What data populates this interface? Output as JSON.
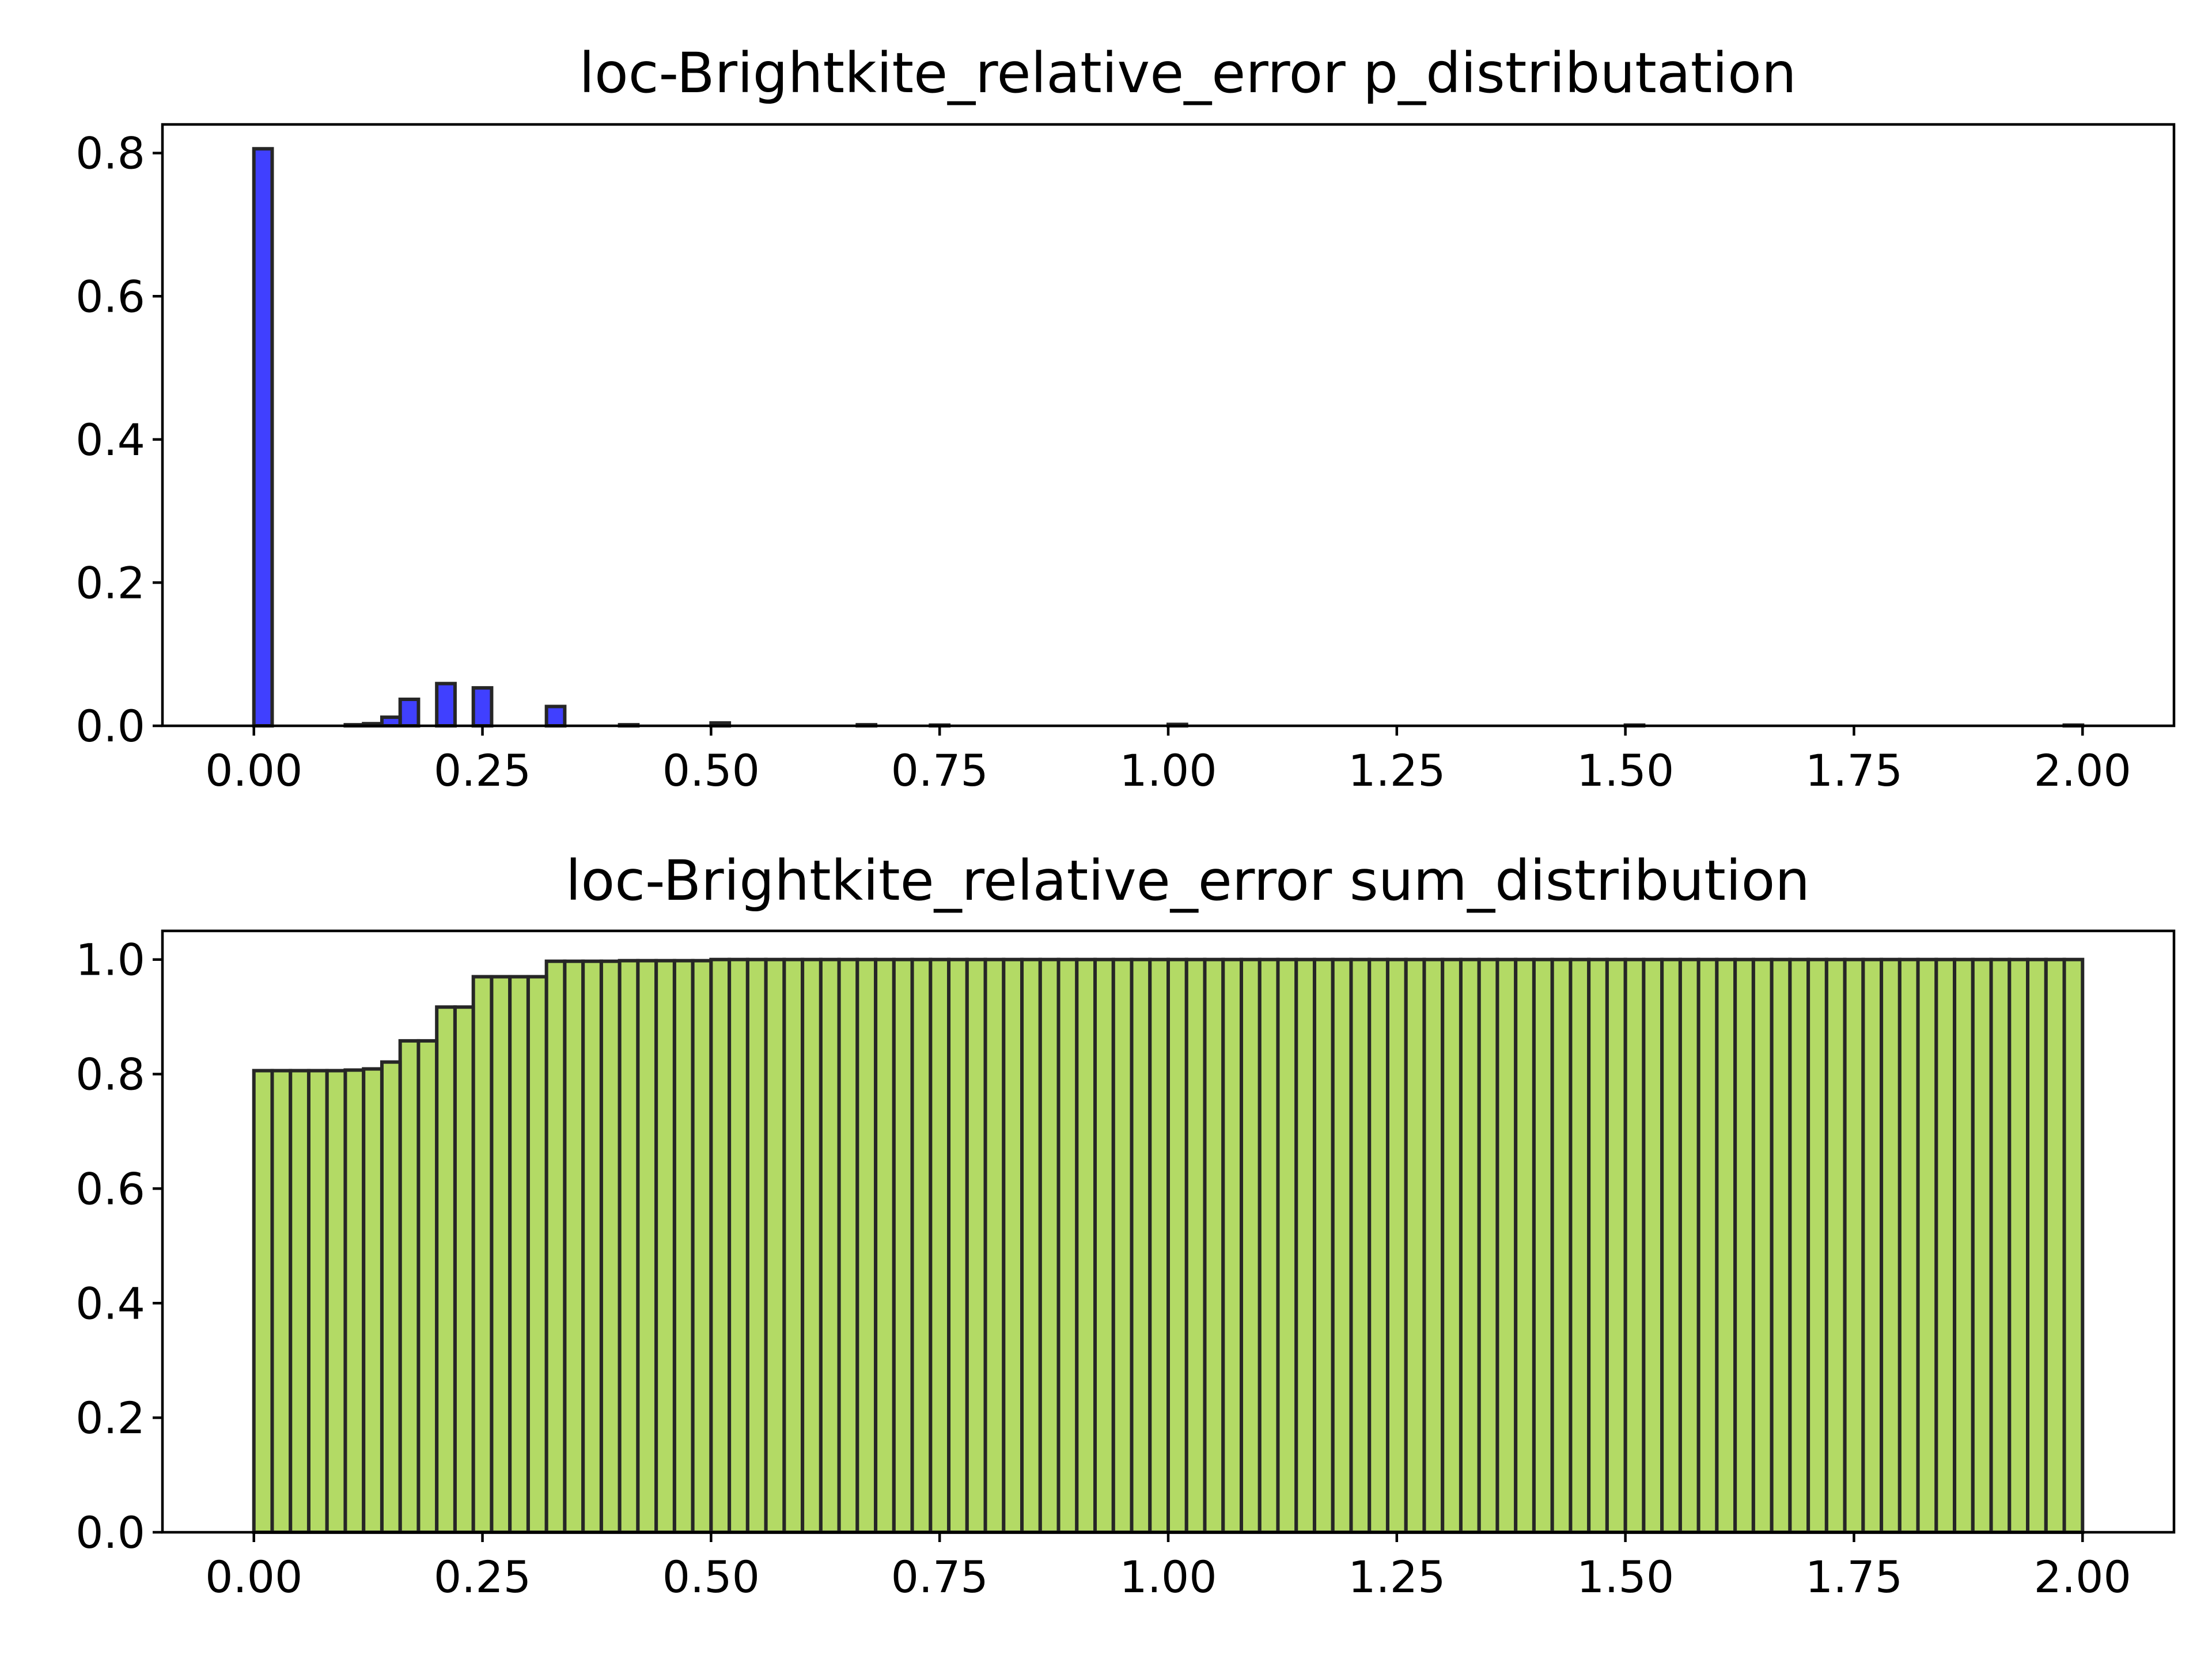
{
  "chart_data": [
    {
      "type": "bar",
      "title": "loc-Brightkite_relative_error p_distributation",
      "xlabel": "",
      "ylabel": "",
      "xlim": [
        -0.1,
        2.1
      ],
      "ylim": [
        0,
        0.84
      ],
      "x_ticks": [
        "0.00",
        "0.25",
        "0.50",
        "0.75",
        "1.00",
        "1.25",
        "1.50",
        "1.75",
        "2.00"
      ],
      "y_ticks": [
        "0.0",
        "0.2",
        "0.4",
        "0.6",
        "0.8"
      ],
      "bar_color": "#0000ff",
      "edge_color": "#262626",
      "bin_width": 0.02,
      "x": [
        0.0,
        0.1,
        0.12,
        0.14,
        0.16,
        0.2,
        0.24,
        0.32,
        0.4,
        0.5,
        0.66,
        0.74,
        1.0,
        1.5,
        1.98
      ],
      "values": [
        0.806,
        0.0015,
        0.003,
        0.012,
        0.037,
        0.059,
        0.053,
        0.027,
        0.0015,
        0.004,
        0.0015,
        0.001,
        0.002,
        0.001,
        0.001
      ],
      "grid": false,
      "legend": "none"
    },
    {
      "type": "bar",
      "title": "loc-Brightkite_relative_error sum_distribution",
      "xlabel": "",
      "ylabel": "",
      "xlim": [
        -0.1,
        2.1
      ],
      "ylim": [
        0,
        1.05
      ],
      "x_ticks": [
        "0.00",
        "0.25",
        "0.50",
        "0.75",
        "1.00",
        "1.25",
        "1.50",
        "1.75",
        "2.00"
      ],
      "y_ticks": [
        "0.0",
        "0.2",
        "0.4",
        "0.6",
        "0.8",
        "1.0"
      ],
      "bar_color": "#9acd32",
      "edge_color": "#262626",
      "bin_width": 0.02,
      "x_start": 0.0,
      "values": [
        0.806,
        0.806,
        0.806,
        0.806,
        0.806,
        0.807,
        0.809,
        0.821,
        0.858,
        0.858,
        0.917,
        0.917,
        0.97,
        0.97,
        0.97,
        0.97,
        0.997,
        0.997,
        0.997,
        0.997,
        0.998,
        0.998,
        0.998,
        0.998,
        0.998,
        1.0,
        1.0,
        1.0,
        1.0,
        1.0,
        1.0,
        1.0,
        1.0,
        1.0,
        1.0,
        1.0,
        1.0,
        1.0,
        1.0,
        1.0,
        1.0,
        1.0,
        1.0,
        1.0,
        1.0,
        1.0,
        1.0,
        1.0,
        1.0,
        1.0,
        1.0,
        1.0,
        1.0,
        1.0,
        1.0,
        1.0,
        1.0,
        1.0,
        1.0,
        1.0,
        1.0,
        1.0,
        1.0,
        1.0,
        1.0,
        1.0,
        1.0,
        1.0,
        1.0,
        1.0,
        1.0,
        1.0,
        1.0,
        1.0,
        1.0,
        1.0,
        1.0,
        1.0,
        1.0,
        1.0,
        1.0,
        1.0,
        1.0,
        1.0,
        1.0,
        1.0,
        1.0,
        1.0,
        1.0,
        1.0,
        1.0,
        1.0,
        1.0,
        1.0,
        1.0,
        1.0,
        1.0,
        1.0,
        1.0,
        1.0
      ],
      "grid": false,
      "legend": "none"
    }
  ]
}
